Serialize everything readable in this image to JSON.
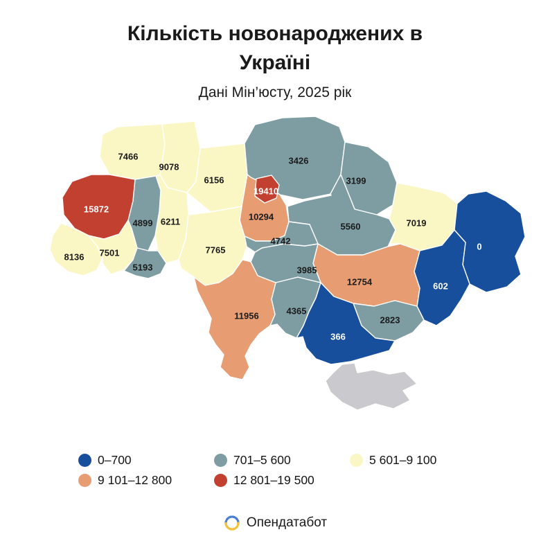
{
  "header": {
    "title_line1": "Кількість новонароджених в",
    "title_line2": "Україні",
    "subtitle": "Дані Мін’юсту, 2025 рік"
  },
  "legend": {
    "items": [
      {
        "label": "0–700",
        "color": "#174f9c"
      },
      {
        "label": "701–5 600",
        "color": "#7e9da3"
      },
      {
        "label": "5 601–9 100",
        "color": "#faf7c5"
      },
      {
        "label": "9 101–12 800",
        "color": "#e79c72"
      },
      {
        "label": "12 801–19 500",
        "color": "#c2402f"
      }
    ]
  },
  "footer": {
    "brand": "Опендатабот"
  },
  "map": {
    "border_color": "#ffffff",
    "regions": [
      {
        "id": "volyn",
        "name": "Волинська",
        "value": "7466",
        "color": "#faf7c5",
        "label_color": "#1a1a1a"
      },
      {
        "id": "rivne",
        "name": "Рівненська",
        "value": "9078",
        "color": "#faf7c5",
        "label_color": "#1a1a1a"
      },
      {
        "id": "zhytomyr",
        "name": "Житомирська",
        "value": "6156",
        "color": "#faf7c5",
        "label_color": "#1a1a1a"
      },
      {
        "id": "chernihiv",
        "name": "Чернігівська",
        "value": "3426",
        "color": "#7e9da3",
        "label_color": "#1a1a1a"
      },
      {
        "id": "sumy",
        "name": "Сумська",
        "value": "3199",
        "color": "#7e9da3",
        "label_color": "#1a1a1a"
      },
      {
        "id": "kyiv_oblast",
        "name": "Київська",
        "value": "10294",
        "color": "#e79c72",
        "label_color": "#1a1a1a"
      },
      {
        "id": "kyiv_city",
        "name": "м. Київ",
        "value": "19410",
        "color": "#c2402f",
        "label_color": "#ffffff"
      },
      {
        "id": "poltava",
        "name": "Полтавська",
        "value": "5560",
        "color": "#7e9da3",
        "label_color": "#1a1a1a"
      },
      {
        "id": "kharkiv",
        "name": "Харківська",
        "value": "7019",
        "color": "#faf7c5",
        "label_color": "#1a1a1a"
      },
      {
        "id": "luhansk",
        "name": "Луганська",
        "value": "0",
        "color": "#174f9c",
        "label_color": "#ffffff"
      },
      {
        "id": "donetsk",
        "name": "Донецька",
        "value": "602",
        "color": "#174f9c",
        "label_color": "#ffffff"
      },
      {
        "id": "dnipro",
        "name": "Дніпропетровська",
        "value": "12754",
        "color": "#e79c72",
        "label_color": "#1a1a1a"
      },
      {
        "id": "zaporizhzhia",
        "name": "Запорізька",
        "value": "2823",
        "color": "#7e9da3",
        "label_color": "#1a1a1a"
      },
      {
        "id": "kherson",
        "name": "Херсонська",
        "value": "366",
        "color": "#174f9c",
        "label_color": "#ffffff"
      },
      {
        "id": "crimea",
        "name": "АР Крим",
        "value": "",
        "color": "#c9c9ce",
        "label_color": "#1a1a1a"
      },
      {
        "id": "mykolaiv",
        "name": "Миколаївська",
        "value": "4365",
        "color": "#7e9da3",
        "label_color": "#1a1a1a"
      },
      {
        "id": "kirovohrad",
        "name": "Кіровоградська",
        "value": "3985",
        "color": "#7e9da3",
        "label_color": "#1a1a1a"
      },
      {
        "id": "cherkasy",
        "name": "Черкаська",
        "value": "4742",
        "color": "#7e9da3",
        "label_color": "#1a1a1a"
      },
      {
        "id": "vinnytsia",
        "name": "Вінницька",
        "value": "7765",
        "color": "#faf7c5",
        "label_color": "#1a1a1a"
      },
      {
        "id": "khmelnytskyi",
        "name": "Хмельницька",
        "value": "6211",
        "color": "#faf7c5",
        "label_color": "#1a1a1a"
      },
      {
        "id": "ternopil",
        "name": "Тернопільська",
        "value": "4899",
        "color": "#7e9da3",
        "label_color": "#1a1a1a"
      },
      {
        "id": "lviv",
        "name": "Львівська",
        "value": "15872",
        "color": "#c2402f",
        "label_color": "#ffffff"
      },
      {
        "id": "zakarpattia",
        "name": "Закарпатська",
        "value": "8136",
        "color": "#faf7c5",
        "label_color": "#1a1a1a"
      },
      {
        "id": "ivano_frankivsk",
        "name": "Івано-Франківська",
        "value": "7501",
        "color": "#faf7c5",
        "label_color": "#1a1a1a"
      },
      {
        "id": "chernivtsi",
        "name": "Чернівецька",
        "value": "5193",
        "color": "#7e9da3",
        "label_color": "#1a1a1a"
      },
      {
        "id": "odesa",
        "name": "Одеська",
        "value": "11956",
        "color": "#e79c72",
        "label_color": "#1a1a1a"
      }
    ]
  },
  "chart_data": {
    "type": "choropleth",
    "title": "Кількість новонароджених в Україні",
    "subtitle": "Дані Мін’юсту, 2025 рік",
    "legend_position": "bottom",
    "buckets": [
      {
        "range": "0–700",
        "color": "#174f9c"
      },
      {
        "range": "701–5 600",
        "color": "#7e9da3"
      },
      {
        "range": "5 601–9 100",
        "color": "#faf7c5"
      },
      {
        "range": "9 101–12 800",
        "color": "#e79c72"
      },
      {
        "range": "12 801–19 500",
        "color": "#c2402f"
      }
    ],
    "regions": [
      {
        "name": "Волинська",
        "value": 7466
      },
      {
        "name": "Рівненська",
        "value": 9078
      },
      {
        "name": "Житомирська",
        "value": 6156
      },
      {
        "name": "Чернігівська",
        "value": 3426
      },
      {
        "name": "Сумська",
        "value": 3199
      },
      {
        "name": "Київська",
        "value": 10294
      },
      {
        "name": "м. Київ",
        "value": 19410
      },
      {
        "name": "Полтавська",
        "value": 5560
      },
      {
        "name": "Харківська",
        "value": 7019
      },
      {
        "name": "Луганська",
        "value": 0
      },
      {
        "name": "Донецька",
        "value": 602
      },
      {
        "name": "Дніпропетровська",
        "value": 12754
      },
      {
        "name": "Запорізька",
        "value": 2823
      },
      {
        "name": "Херсонська",
        "value": 366
      },
      {
        "name": "АР Крим",
        "value": null
      },
      {
        "name": "Миколаївська",
        "value": 4365
      },
      {
        "name": "Кіровоградська",
        "value": 3985
      },
      {
        "name": "Черкаська",
        "value": 4742
      },
      {
        "name": "Вінницька",
        "value": 7765
      },
      {
        "name": "Хмельницька",
        "value": 6211
      },
      {
        "name": "Тернопільська",
        "value": 4899
      },
      {
        "name": "Львівська",
        "value": 15872
      },
      {
        "name": "Закарпатська",
        "value": 8136
      },
      {
        "name": "Івано-Франківська",
        "value": 7501
      },
      {
        "name": "Чернівецька",
        "value": 5193
      },
      {
        "name": "Одеська",
        "value": 11956
      }
    ]
  }
}
